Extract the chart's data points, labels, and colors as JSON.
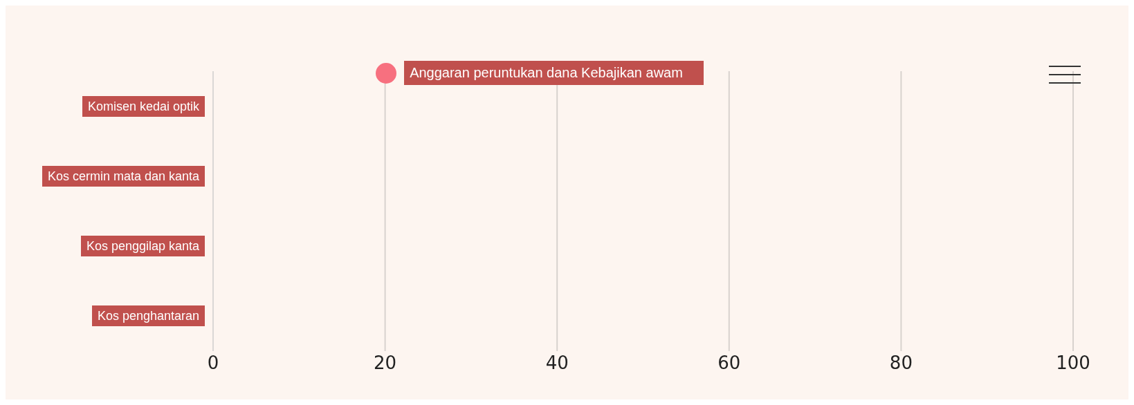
{
  "chart_data": {
    "type": "bar",
    "orientation": "horizontal",
    "categories": [
      "Komisen kedai optik",
      "Kos cermin mata dan kanta",
      "Kos penggilap kanta",
      "Kos penghantaran"
    ],
    "series": [
      {
        "name": "Anggaran peruntukan dana Kebajikan awam",
        "color": "#f7707f",
        "values": [
          null,
          null,
          null,
          null
        ]
      }
    ],
    "xlim": [
      0,
      100
    ],
    "xticks": [
      0,
      20,
      40,
      60,
      80,
      100
    ],
    "grid": "x",
    "legend": "top"
  }
}
